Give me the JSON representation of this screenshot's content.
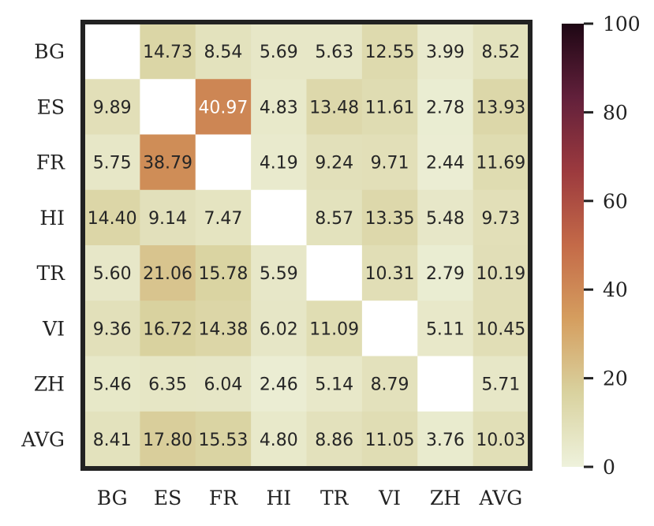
{
  "chart_data": {
    "type": "heatmap",
    "rows": [
      "BG",
      "ES",
      "FR",
      "HI",
      "TR",
      "VI",
      "ZH",
      "AVG"
    ],
    "columns": [
      "BG",
      "ES",
      "FR",
      "HI",
      "TR",
      "VI",
      "ZH",
      "AVG"
    ],
    "values": [
      [
        null,
        14.73,
        8.54,
        5.69,
        5.63,
        12.55,
        3.99,
        8.52
      ],
      [
        9.89,
        null,
        40.97,
        4.83,
        13.48,
        11.61,
        2.78,
        13.93
      ],
      [
        5.75,
        38.79,
        null,
        4.19,
        9.24,
        9.71,
        2.44,
        11.69
      ],
      [
        14.4,
        9.14,
        7.47,
        null,
        8.57,
        13.35,
        5.48,
        9.73
      ],
      [
        5.6,
        21.06,
        15.78,
        5.59,
        null,
        10.31,
        2.79,
        10.19
      ],
      [
        9.36,
        16.72,
        14.38,
        6.02,
        11.09,
        null,
        5.11,
        10.45
      ],
      [
        5.46,
        6.35,
        6.04,
        2.46,
        5.14,
        8.79,
        null,
        5.71
      ],
      [
        8.41,
        17.8,
        15.53,
        4.8,
        8.86,
        11.05,
        3.76,
        10.03
      ]
    ],
    "labels": [
      [
        "",
        "14.73",
        "8.54",
        "5.69",
        "5.63",
        "12.55",
        "3.99",
        "8.52"
      ],
      [
        "9.89",
        "",
        "40.97",
        "4.83",
        "13.48",
        "11.61",
        "2.78",
        "13.93"
      ],
      [
        "5.75",
        "38.79",
        "",
        "4.19",
        "9.24",
        "9.71",
        "2.44",
        "11.69"
      ],
      [
        "14.40",
        "9.14",
        "7.47",
        "",
        "8.57",
        "13.35",
        "5.48",
        "9.73"
      ],
      [
        "5.60",
        "21.06",
        "15.78",
        "5.59",
        "",
        "10.31",
        "2.79",
        "10.19"
      ],
      [
        "9.36",
        "16.72",
        "14.38",
        "6.02",
        "11.09",
        "",
        "5.11",
        "10.45"
      ],
      [
        "5.46",
        "6.35",
        "6.04",
        "2.46",
        "5.14",
        "8.79",
        "",
        "5.71"
      ],
      [
        "8.41",
        "17.80",
        "15.53",
        "4.80",
        "8.86",
        "11.05",
        "3.76",
        "10.03"
      ]
    ],
    "colorbar": {
      "range": [
        0,
        100
      ],
      "ticks": [
        "0",
        "20",
        "40",
        "60",
        "80",
        "100"
      ],
      "colormap": [
        "#eef2dc",
        "#d9d29f",
        "#d59e5f",
        "#c46a48",
        "#9c3a3e",
        "#62203b",
        "#1e0714"
      ]
    },
    "grid": false
  }
}
